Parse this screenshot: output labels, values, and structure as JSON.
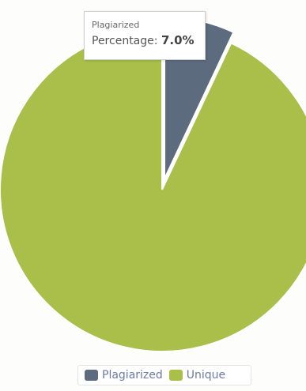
{
  "chart_data": {
    "type": "pie",
    "slices": [
      {
        "label": "Plagiarized",
        "value": 7.0,
        "color": "#5d6b7e"
      },
      {
        "label": "Unique",
        "value": 93.0,
        "color": "#a9bf4a"
      }
    ],
    "exploded_slice": "Plagiarized",
    "legend_position": "bottom-center",
    "tooltip": {
      "series": "Plagiarized",
      "label": "Percentage:",
      "value": "7.0%"
    }
  }
}
